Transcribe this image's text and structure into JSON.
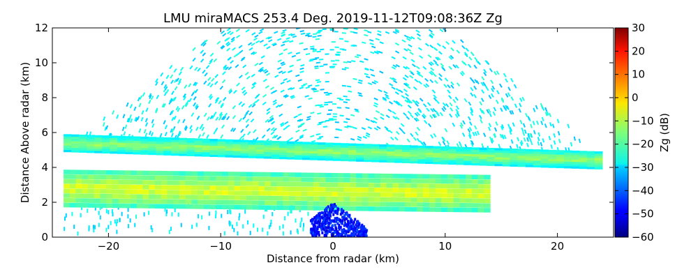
{
  "chart_data": {
    "type": "heatmap",
    "title": "LMU miraMACS 253.4 Deg. 2019-11-12T09:08:36Z  Zg",
    "xlabel": "Distance from radar (km)",
    "ylabel": "Distance Above radar  (km)",
    "xlim": [
      -25,
      25
    ],
    "ylim": [
      0,
      12
    ],
    "xticks": [
      -20,
      -10,
      0,
      10,
      20
    ],
    "yticks": [
      0,
      2,
      4,
      6,
      8,
      10,
      12
    ],
    "colorbar": {
      "label": "Zg (dB)",
      "range": [
        -60,
        30
      ],
      "ticks": [
        30,
        20,
        10,
        0,
        -10,
        -20,
        -30,
        -40,
        -50,
        -60
      ],
      "colormap": "jet"
    },
    "layers": [
      {
        "name": "upper cloud layer",
        "x_range": [
          -24,
          24
        ],
        "height_start_km": 5.4,
        "height_end_km": 4.4,
        "thickness_km": 0.9,
        "zg_db": -18
      },
      {
        "name": "lower cloud layer",
        "x_range": [
          -24,
          14
        ],
        "height_start_km": 2.8,
        "height_end_km": 2.5,
        "thickness_km": 1.9,
        "zg_db": -12
      },
      {
        "name": "near-radar clutter",
        "x_range": [
          -2,
          3
        ],
        "height_start_km": 0,
        "height_end_km": 2,
        "zg_db": -47
      },
      {
        "name": "background noise",
        "zg_db": -27
      }
    ]
  }
}
